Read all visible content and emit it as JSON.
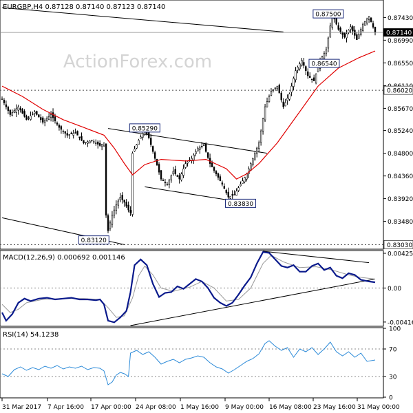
{
  "chart_data": {
    "type": "candlestick",
    "symbol_header": "EURGBP,H4  0.87128 0.87140 0.87123 0.87140",
    "watermark": "ActionForex.com",
    "colors": {
      "background": "#ffffff",
      "candle": "#000000",
      "sma": "#e00000",
      "macd": "#0a1a8c",
      "macd_signal": "#9a9a9a",
      "rsi": "#2b8ad8",
      "trendline": "#000000",
      "grid": "#c8c8c8",
      "current_price_bg": "#000000",
      "current_price_fg": "#ffffff"
    },
    "price_axis": {
      "min": 0.82955,
      "max": 0.87755,
      "ticks": [
        "0.87430",
        "0.86990",
        "0.86550",
        "0.86110",
        "0.85670",
        "0.85240",
        "0.84800",
        "0.84360",
        "0.83920",
        "0.83480"
      ],
      "current_price": "0.87140",
      "level_lines": [
        "0.86020",
        "0.83030"
      ]
    },
    "price_annotations": [
      {
        "label": "0.87500",
        "price": 0.875
      },
      {
        "label": "0.86540",
        "price": 0.8654
      },
      {
        "label": "0.85290",
        "price": 0.8529
      },
      {
        "label": "0.83830",
        "price": 0.8383
      },
      {
        "label": "0.83120",
        "price": 0.8312
      }
    ],
    "x_axis_labels": [
      "31 Mar 2017",
      "7 Apr 16:00",
      "17 Apr 00:00",
      "24 Apr 08:00",
      "1 May 16:00",
      "9 May 00:00",
      "16 May 08:00",
      "23 May 16:00",
      "31 May 00:00"
    ],
    "price_path": [
      [
        0,
        0.8585
      ],
      [
        4,
        0.8555
      ],
      [
        8,
        0.857
      ],
      [
        12,
        0.8545
      ],
      [
        16,
        0.856
      ],
      [
        20,
        0.854
      ],
      [
        24,
        0.8555
      ],
      [
        28,
        0.853
      ],
      [
        32,
        0.8515
      ],
      [
        36,
        0.852
      ],
      [
        40,
        0.85
      ],
      [
        44,
        0.8505
      ],
      [
        48,
        0.8495
      ],
      [
        50,
        0.85
      ],
      [
        51,
        0.836
      ],
      [
        52,
        0.833
      ],
      [
        54,
        0.836
      ],
      [
        56,
        0.838
      ],
      [
        58,
        0.8395
      ],
      [
        60,
        0.8385
      ],
      [
        62,
        0.837
      ],
      [
        63,
        0.8365
      ],
      [
        64,
        0.848
      ],
      [
        67,
        0.8505
      ],
      [
        70,
        0.8525
      ],
      [
        72,
        0.851
      ],
      [
        75,
        0.847
      ],
      [
        78,
        0.843
      ],
      [
        81,
        0.842
      ],
      [
        84,
        0.8445
      ],
      [
        87,
        0.843
      ],
      [
        90,
        0.846
      ],
      [
        93,
        0.847
      ],
      [
        96,
        0.849
      ],
      [
        99,
        0.8495
      ],
      [
        102,
        0.846
      ],
      [
        105,
        0.844
      ],
      [
        108,
        0.842
      ],
      [
        111,
        0.8395
      ],
      [
        114,
        0.84
      ],
      [
        117,
        0.842
      ],
      [
        120,
        0.844
      ],
      [
        123,
        0.847
      ],
      [
        126,
        0.85
      ],
      [
        129,
        0.857
      ],
      [
        132,
        0.86
      ],
      [
        135,
        0.861
      ],
      [
        138,
        0.857
      ],
      [
        141,
        0.8595
      ],
      [
        144,
        0.864
      ],
      [
        147,
        0.866
      ],
      [
        150,
        0.863
      ],
      [
        153,
        0.862
      ],
      [
        156,
        0.866
      ],
      [
        159,
        0.868
      ],
      [
        162,
        0.875
      ],
      [
        165,
        0.872
      ],
      [
        168,
        0.8705
      ],
      [
        171,
        0.8725
      ],
      [
        174,
        0.87
      ],
      [
        177,
        0.873
      ],
      [
        180,
        0.8745
      ],
      [
        183,
        0.8714
      ]
    ],
    "sma_path": [
      [
        0,
        0.861
      ],
      [
        10,
        0.859
      ],
      [
        20,
        0.8565
      ],
      [
        30,
        0.8545
      ],
      [
        40,
        0.853
      ],
      [
        50,
        0.8515
      ],
      [
        55,
        0.849
      ],
      [
        60,
        0.846
      ],
      [
        64,
        0.8438
      ],
      [
        70,
        0.8458
      ],
      [
        78,
        0.8468
      ],
      [
        90,
        0.8465
      ],
      [
        100,
        0.8468
      ],
      [
        110,
        0.845
      ],
      [
        115,
        0.843
      ],
      [
        120,
        0.844
      ],
      [
        126,
        0.846
      ],
      [
        135,
        0.85
      ],
      [
        145,
        0.8555
      ],
      [
        155,
        0.861
      ],
      [
        165,
        0.8645
      ],
      [
        175,
        0.8665
      ],
      [
        183,
        0.8678
      ]
    ],
    "price_trendlines": [
      {
        "from": [
          0,
          0.8762
        ],
        "to": [
          138,
          0.8715
        ]
      },
      {
        "from": [
          52,
          0.8528
        ],
        "to": [
          130,
          0.848
        ]
      },
      {
        "from": [
          70,
          0.8415
        ],
        "to": [
          121,
          0.8383
        ]
      },
      {
        "from": [
          0,
          0.8355
        ],
        "to": [
          60,
          0.8303
        ]
      }
    ],
    "macd": {
      "label": "MACD(12,26,9) 0.000692 0.001146",
      "min": -0.0046,
      "max": 0.0045,
      "ticks": [
        "0.00425",
        "0.00",
        "-0.004167"
      ],
      "zero_line": "0.00",
      "main": [
        [
          0,
          -0.003
        ],
        [
          2,
          -0.004
        ],
        [
          5,
          -0.0032
        ],
        [
          8,
          -0.0018
        ],
        [
          11,
          -0.0013
        ],
        [
          14,
          -0.0016
        ],
        [
          18,
          -0.0013
        ],
        [
          22,
          -0.0012
        ],
        [
          26,
          -0.0014
        ],
        [
          30,
          -0.0013
        ],
        [
          34,
          -0.0012
        ],
        [
          38,
          -0.0014
        ],
        [
          42,
          -0.0014
        ],
        [
          46,
          -0.0015
        ],
        [
          48,
          -0.0014
        ],
        [
          50,
          -0.002
        ],
        [
          52,
          -0.004
        ],
        [
          55,
          -0.0042
        ],
        [
          58,
          -0.0036
        ],
        [
          61,
          -0.0028
        ],
        [
          63,
          -0.0005
        ],
        [
          65,
          0.0028
        ],
        [
          68,
          0.0035
        ],
        [
          71,
          0.0028
        ],
        [
          74,
          0.0005
        ],
        [
          77,
          -0.0011
        ],
        [
          80,
          -0.0006
        ],
        [
          83,
          -0.0005
        ],
        [
          86,
          0.0002
        ],
        [
          89,
          -0.0001
        ],
        [
          92,
          0.0005
        ],
        [
          95,
          0.0011
        ],
        [
          98,
          0.0008
        ],
        [
          101,
          0.0
        ],
        [
          104,
          -0.0012
        ],
        [
          107,
          -0.0018
        ],
        [
          110,
          -0.0022
        ],
        [
          113,
          -0.0018
        ],
        [
          116,
          -0.0008
        ],
        [
          119,
          0.0003
        ],
        [
          122,
          0.0013
        ],
        [
          125,
          0.003
        ],
        [
          128,
          0.0044
        ],
        [
          131,
          0.0043
        ],
        [
          134,
          0.0035
        ],
        [
          137,
          0.0027
        ],
        [
          140,
          0.0025
        ],
        [
          143,
          0.0028
        ],
        [
          146,
          0.002
        ],
        [
          149,
          0.002
        ],
        [
          152,
          0.0027
        ],
        [
          155,
          0.003
        ],
        [
          158,
          0.0022
        ],
        [
          161,
          0.0025
        ],
        [
          164,
          0.0015
        ],
        [
          167,
          0.0012
        ],
        [
          170,
          0.0018
        ],
        [
          173,
          0.0016
        ],
        [
          176,
          0.001
        ],
        [
          180,
          0.0008
        ],
        [
          183,
          0.0007
        ]
      ],
      "signal": [
        [
          0,
          -0.002
        ],
        [
          4,
          -0.003
        ],
        [
          8,
          -0.0026
        ],
        [
          12,
          -0.0018
        ],
        [
          20,
          -0.0014
        ],
        [
          30,
          -0.0013
        ],
        [
          40,
          -0.0013
        ],
        [
          48,
          -0.0014
        ],
        [
          52,
          -0.0024
        ],
        [
          56,
          -0.0036
        ],
        [
          60,
          -0.0034
        ],
        [
          64,
          -0.0012
        ],
        [
          67,
          0.0015
        ],
        [
          70,
          0.0027
        ],
        [
          74,
          0.0016
        ],
        [
          78,
          0.0
        ],
        [
          84,
          -0.0004
        ],
        [
          92,
          0.0001
        ],
        [
          98,
          0.0008
        ],
        [
          104,
          0.0
        ],
        [
          110,
          -0.0016
        ],
        [
          116,
          -0.0014
        ],
        [
          122,
          0.0
        ],
        [
          128,
          0.003
        ],
        [
          132,
          0.004
        ],
        [
          138,
          0.0032
        ],
        [
          146,
          0.0025
        ],
        [
          154,
          0.0026
        ],
        [
          162,
          0.0022
        ],
        [
          170,
          0.0016
        ],
        [
          176,
          0.0013
        ],
        [
          183,
          0.0011
        ]
      ],
      "trendlines": [
        {
          "from": [
            63,
            -0.0046
          ],
          "to": [
            183,
            0.0011
          ]
        },
        {
          "from": [
            128,
            0.0045
          ],
          "to": [
            180,
            0.0031
          ]
        }
      ]
    },
    "rsi": {
      "label": "RSI(14) 54.1238",
      "min": 0,
      "max": 100,
      "ticks": [
        "100",
        "70",
        "30",
        "0"
      ],
      "level_lines": [
        "70",
        "30"
      ],
      "values": [
        [
          0,
          34
        ],
        [
          3,
          30
        ],
        [
          6,
          40
        ],
        [
          9,
          44
        ],
        [
          12,
          39
        ],
        [
          15,
          43
        ],
        [
          18,
          40
        ],
        [
          21,
          45
        ],
        [
          24,
          42
        ],
        [
          27,
          46
        ],
        [
          30,
          41
        ],
        [
          33,
          44
        ],
        [
          36,
          42
        ],
        [
          39,
          45
        ],
        [
          42,
          40
        ],
        [
          45,
          43
        ],
        [
          48,
          42
        ],
        [
          50,
          38
        ],
        [
          52,
          18
        ],
        [
          54,
          22
        ],
        [
          56,
          32
        ],
        [
          58,
          36
        ],
        [
          60,
          34
        ],
        [
          62,
          30
        ],
        [
          63,
          64
        ],
        [
          66,
          68
        ],
        [
          69,
          62
        ],
        [
          72,
          66
        ],
        [
          75,
          58
        ],
        [
          78,
          48
        ],
        [
          81,
          52
        ],
        [
          84,
          55
        ],
        [
          87,
          50
        ],
        [
          90,
          55
        ],
        [
          93,
          57
        ],
        [
          96,
          60
        ],
        [
          99,
          58
        ],
        [
          102,
          50
        ],
        [
          105,
          44
        ],
        [
          108,
          41
        ],
        [
          111,
          35
        ],
        [
          114,
          40
        ],
        [
          117,
          46
        ],
        [
          120,
          52
        ],
        [
          123,
          56
        ],
        [
          126,
          63
        ],
        [
          129,
          78
        ],
        [
          131,
          82
        ],
        [
          134,
          74
        ],
        [
          137,
          68
        ],
        [
          140,
          72
        ],
        [
          143,
          58
        ],
        [
          146,
          70
        ],
        [
          149,
          66
        ],
        [
          152,
          72
        ],
        [
          155,
          62
        ],
        [
          158,
          70
        ],
        [
          161,
          80
        ],
        [
          164,
          66
        ],
        [
          167,
          60
        ],
        [
          170,
          66
        ],
        [
          173,
          58
        ],
        [
          176,
          64
        ],
        [
          179,
          52
        ],
        [
          183,
          54
        ]
      ]
    }
  }
}
